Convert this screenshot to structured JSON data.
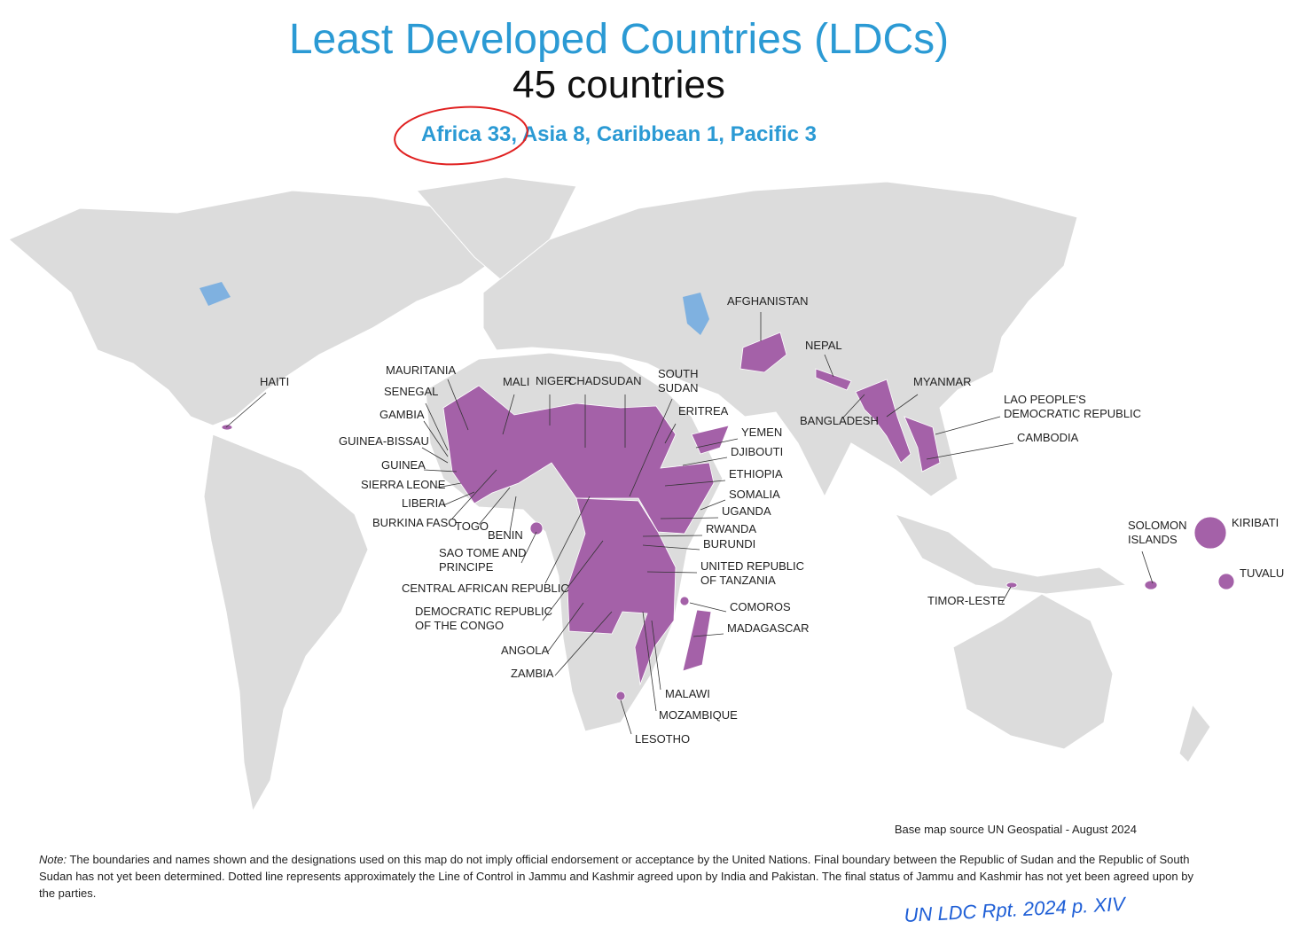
{
  "header": {
    "title": "Least Developed Countries (LDCs)",
    "subtitle": "45 countries",
    "breakdown": "Africa 33, Asia 8, Caribbean 1, Pacific 3"
  },
  "map": {
    "labels": [
      [
        "AFGHANISTAN"
      ],
      [
        "NEPAL"
      ],
      [
        "MYANMAR"
      ],
      [
        "BANGLADESH"
      ],
      [
        "LAO PEOPLE'S",
        "DEMOCRATIC REPUBLIC"
      ],
      [
        "CAMBODIA"
      ],
      [
        "HAITI"
      ],
      [
        "MAURITANIA"
      ],
      [
        "SENEGAL"
      ],
      [
        "GAMBIA"
      ],
      [
        "GUINEA-BISSAU"
      ],
      [
        "GUINEA"
      ],
      [
        "SIERRA LEONE"
      ],
      [
        "LIBERIA"
      ],
      [
        "BURKINA FASO"
      ],
      [
        "TOGO"
      ],
      [
        "BENIN"
      ],
      [
        "SAO TOME AND",
        "PRINCIPE"
      ],
      [
        "CENTRAL AFRICAN REPUBLIC"
      ],
      [
        "DEMOCRATIC REPUBLIC",
        "OF THE CONGO"
      ],
      [
        "ANGOLA"
      ],
      [
        "ZAMBIA"
      ],
      [
        "MALI"
      ],
      [
        "NIGER"
      ],
      [
        "CHAD"
      ],
      [
        "SUDAN"
      ],
      [
        "SOUTH",
        "SUDAN"
      ],
      [
        "ERITREA"
      ],
      [
        "YEMEN"
      ],
      [
        "DJIBOUTI"
      ],
      [
        "ETHIOPIA"
      ],
      [
        "SOMALIA"
      ],
      [
        "UGANDA"
      ],
      [
        "RWANDA"
      ],
      [
        "BURUNDI"
      ],
      [
        "UNITED REPUBLIC",
        "OF TANZANIA"
      ],
      [
        "COMOROS"
      ],
      [
        "MADAGASCAR"
      ],
      [
        "MALAWI"
      ],
      [
        "MOZAMBIQUE"
      ],
      [
        "LESOTHO"
      ],
      [
        "SOLOMON",
        "ISLANDS"
      ],
      [
        "KIRIBATI"
      ],
      [
        "TUVALU"
      ],
      [
        "TIMOR-LESTE"
      ]
    ],
    "source": "Base map source UN Geospatial - August 2024"
  },
  "note": {
    "label": "Note:",
    "text": "The boundaries and names shown and the designations used on this map do not imply official endorsement or acceptance by the United Nations. Final boundary between the Republic of Sudan and the Republic of South Sudan has not yet been determined. Dotted line represents approximately the Line of Control in Jammu and Kashmir agreed upon by India and Pakistan. The final status of Jammu and Kashmir has not yet been agreed upon by the parties."
  },
  "annotation": {
    "handwritten": "UN LDC Rpt. 2024 p. XIV"
  }
}
